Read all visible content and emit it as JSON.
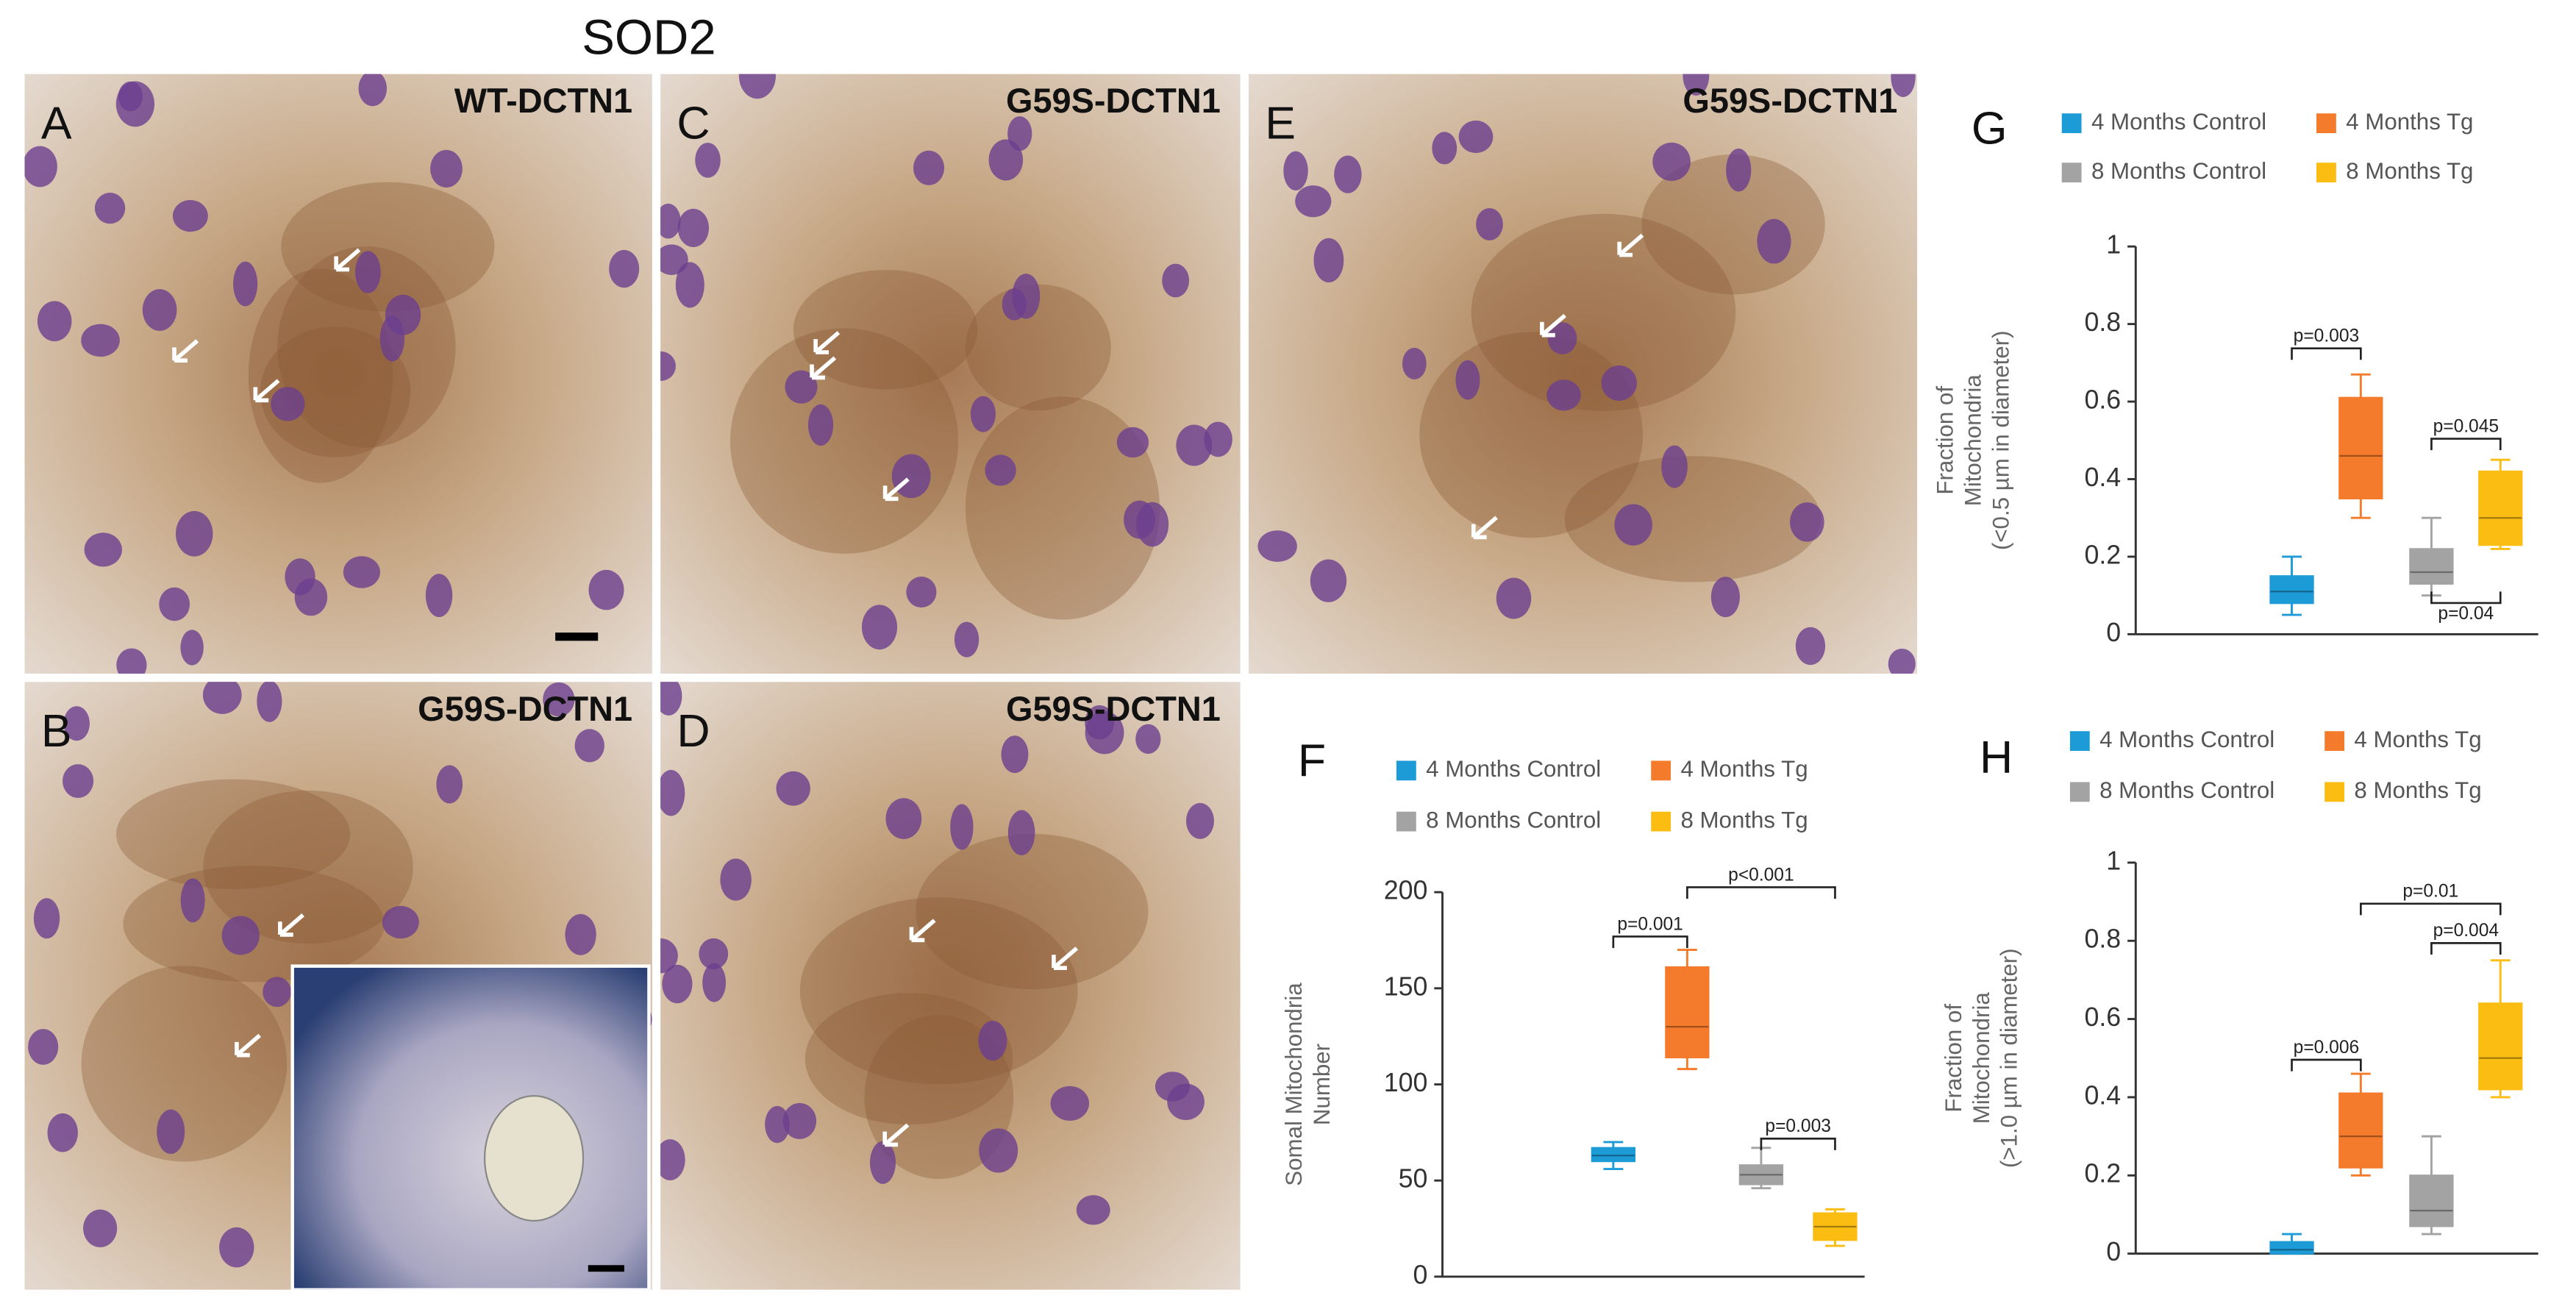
{
  "title": "SOD2",
  "panels": [
    {
      "letter": "A",
      "label": "WT-DCTN1"
    },
    {
      "letter": "B",
      "label": "G59S-DCTN1"
    },
    {
      "letter": "C",
      "label": "G59S-DCTN1"
    },
    {
      "letter": "D",
      "label": "G59S-DCTN1"
    },
    {
      "letter": "E",
      "label": "G59S-DCTN1"
    }
  ],
  "chart_data": [
    {
      "type": "box",
      "letter": "F",
      "ylabel": [
        "Somal Mitochondria",
        "Number"
      ],
      "ylim": [
        0,
        200
      ],
      "yticks": [
        0,
        50,
        100,
        150,
        200
      ],
      "series": [
        {
          "name": "4 Months Control",
          "color": "#1d9bd7",
          "min": 56,
          "q1": 60,
          "median": 63,
          "q3": 67,
          "max": 70
        },
        {
          "name": "4 Months Tg",
          "color": "#f47b2b",
          "min": 108,
          "q1": 114,
          "median": 130,
          "q3": 161,
          "max": 170
        },
        {
          "name": "8 Months Control",
          "color": "#a3a3a3",
          "min": 46,
          "q1": 48,
          "median": 53,
          "q3": 58,
          "max": 67
        },
        {
          "name": "8 Months Tg",
          "color": "#fbbd12",
          "min": 16,
          "q1": 19,
          "median": 26,
          "q3": 33,
          "max": 35
        }
      ],
      "annotations": [
        {
          "text": "p=0.001",
          "between": [
            0,
            1
          ]
        },
        {
          "text": "p<0.001",
          "between": [
            1,
            3
          ]
        },
        {
          "text": "p=0.003",
          "between": [
            2,
            3
          ]
        }
      ]
    },
    {
      "type": "box",
      "letter": "G",
      "ylabel": [
        "Fraction of",
        "Mitochondria",
        "(<0.5 µm in diameter)"
      ],
      "ylim": [
        0,
        1
      ],
      "yticks": [
        0,
        0.2,
        0.4,
        0.6,
        0.8,
        1
      ],
      "series": [
        {
          "name": "4 Months Control",
          "color": "#1d9bd7",
          "min": 0.05,
          "q1": 0.08,
          "median": 0.11,
          "q3": 0.15,
          "max": 0.2
        },
        {
          "name": "4 Months Tg",
          "color": "#f47b2b",
          "min": 0.3,
          "q1": 0.35,
          "median": 0.46,
          "q3": 0.61,
          "max": 0.67
        },
        {
          "name": "8 Months Control",
          "color": "#a3a3a3",
          "min": 0.1,
          "q1": 0.13,
          "median": 0.16,
          "q3": 0.22,
          "max": 0.3
        },
        {
          "name": "8 Months Tg",
          "color": "#fbbd12",
          "min": 0.22,
          "q1": 0.23,
          "median": 0.3,
          "q3": 0.42,
          "max": 0.45
        }
      ],
      "annotations": [
        {
          "text": "p=0.003",
          "between": [
            0,
            1
          ]
        },
        {
          "text": "p=0.045",
          "between": [
            2,
            3
          ]
        },
        {
          "text": "p=0.04",
          "between": [
            2,
            3
          ]
        }
      ]
    },
    {
      "type": "box",
      "letter": "H",
      "ylabel": [
        "Fraction of",
        "Mitochondria",
        "(>1.0 µm in diameter)"
      ],
      "ylim": [
        0,
        1
      ],
      "yticks": [
        0,
        0.2,
        0.4,
        0.6,
        0.8,
        1
      ],
      "series": [
        {
          "name": "4 Months Control",
          "color": "#1d9bd7",
          "min": 0,
          "q1": 0,
          "median": 0.01,
          "q3": 0.03,
          "max": 0.05
        },
        {
          "name": "4 Months Tg",
          "color": "#f47b2b",
          "min": 0.2,
          "q1": 0.22,
          "median": 0.3,
          "q3": 0.41,
          "max": 0.46
        },
        {
          "name": "8 Months Control",
          "color": "#a3a3a3",
          "min": 0.05,
          "q1": 0.07,
          "median": 0.11,
          "q3": 0.2,
          "max": 0.3
        },
        {
          "name": "8 Months Tg",
          "color": "#fbbd12",
          "min": 0.4,
          "q1": 0.42,
          "median": 0.5,
          "q3": 0.64,
          "max": 0.75
        }
      ],
      "annotations": [
        {
          "text": "p=0.006",
          "between": [
            0,
            1
          ]
        },
        {
          "text": "p=0.01",
          "between": [
            1,
            3
          ]
        },
        {
          "text": "p=0.004",
          "between": [
            2,
            3
          ]
        }
      ]
    }
  ]
}
